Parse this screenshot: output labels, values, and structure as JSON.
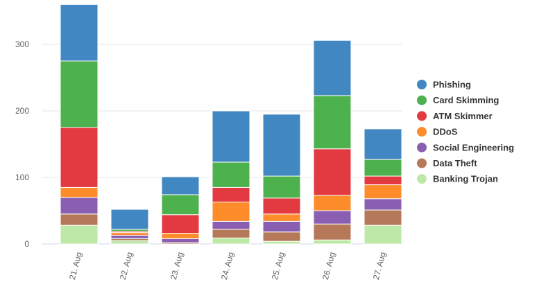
{
  "chart_data": {
    "type": "bar",
    "stacked": true,
    "categories": [
      "21. Aug",
      "22. Aug",
      "23. Aug",
      "24. Aug",
      "25. Aug",
      "26. Aug",
      "27. Aug"
    ],
    "series": [
      {
        "name": "Banking Trojan",
        "color": "#bde8a6",
        "values": [
          28,
          5,
          0,
          9,
          4,
          6,
          28
        ]
      },
      {
        "name": "Data Theft",
        "color": "#b5795a",
        "values": [
          17,
          3,
          2,
          13,
          14,
          24,
          23
        ]
      },
      {
        "name": "Social Engineering",
        "color": "#8a5fb1",
        "values": [
          25,
          5,
          6,
          12,
          16,
          20,
          17
        ]
      },
      {
        "name": "DDoS",
        "color": "#ff8c2a",
        "values": [
          15,
          4,
          8,
          29,
          11,
          23,
          21
        ]
      },
      {
        "name": "ATM Skimmer",
        "color": "#e23a40",
        "values": [
          90,
          2,
          28,
          22,
          24,
          70,
          13
        ]
      },
      {
        "name": "Card Skimming",
        "color": "#4db14d",
        "values": [
          100,
          3,
          30,
          38,
          33,
          80,
          25
        ]
      },
      {
        "name": "Phishing",
        "color": "#4187c2",
        "values": [
          85,
          30,
          27,
          77,
          93,
          83,
          46
        ]
      }
    ],
    "legend_order": [
      "Phishing",
      "Card Skimming",
      "ATM Skimmer",
      "DDoS",
      "Social Engineering",
      "Data Theft",
      "Banking Trojan"
    ],
    "ylim": [
      0,
      360
    ],
    "yticks": [
      0,
      100,
      200,
      300
    ],
    "grid": true,
    "legend_position": "right",
    "title": "",
    "xlabel": "",
    "ylabel": ""
  }
}
